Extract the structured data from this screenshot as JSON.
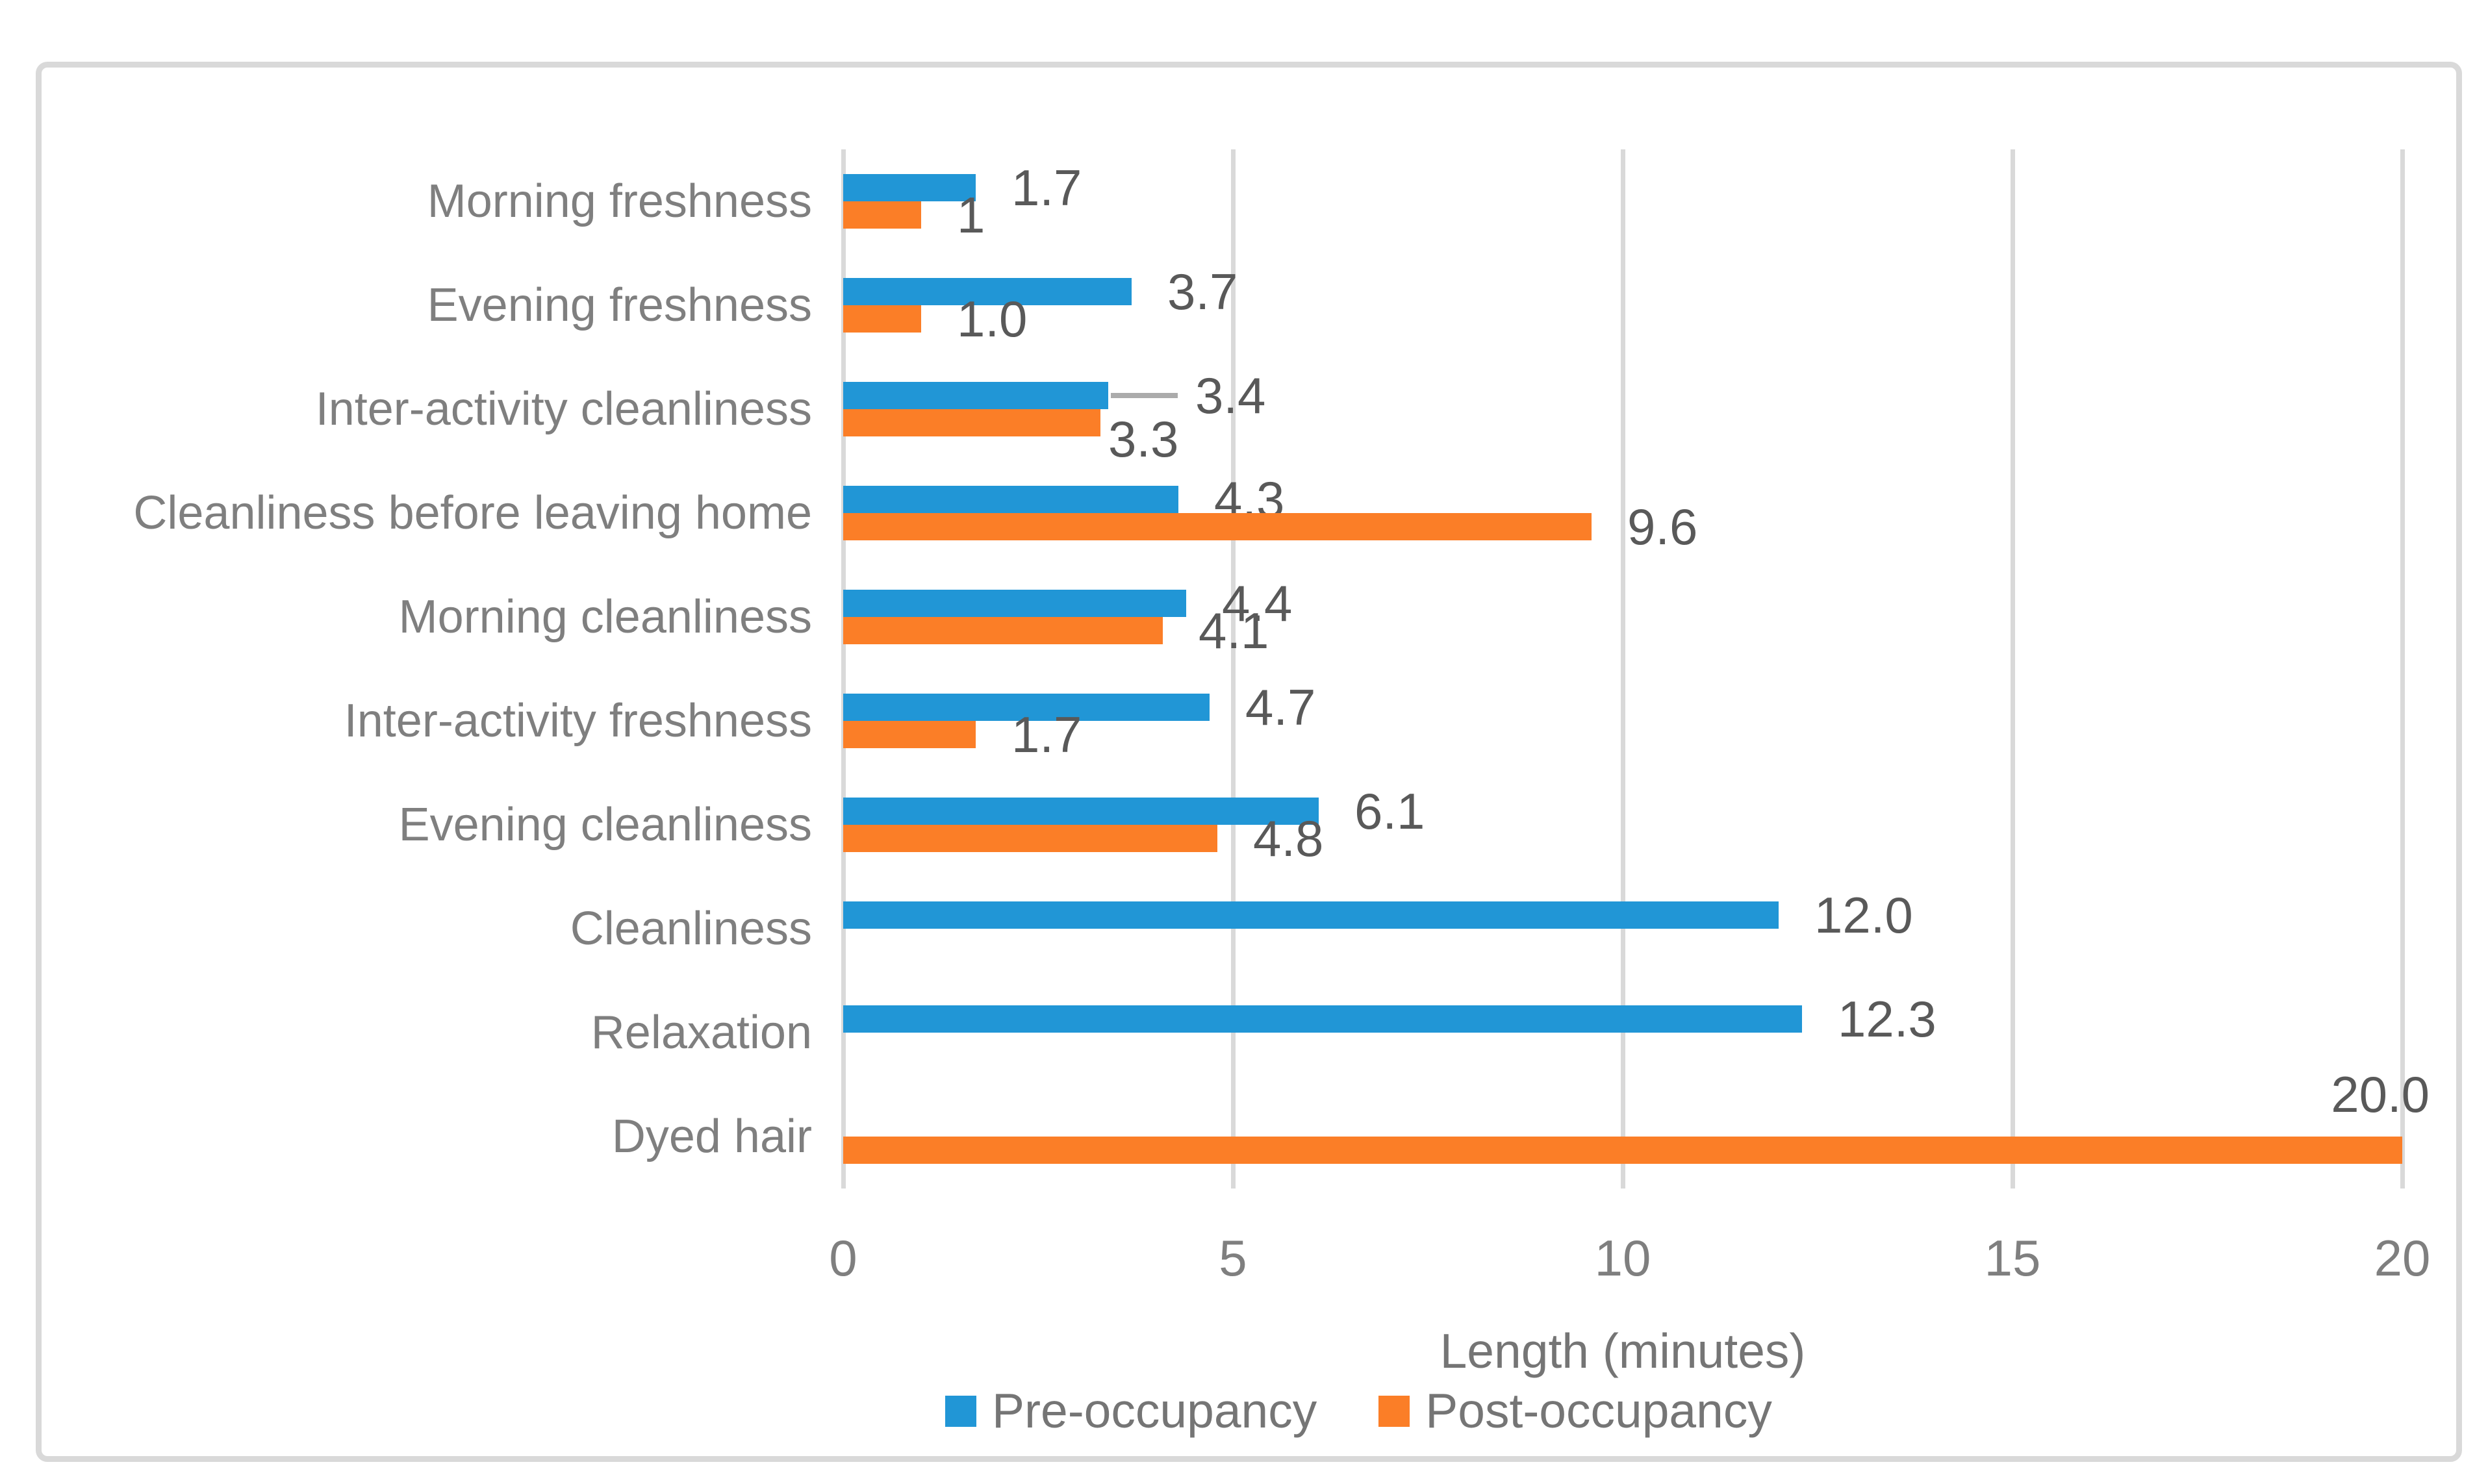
{
  "chart_data": {
    "type": "bar",
    "orientation": "horizontal",
    "title": "",
    "xlabel": "Length (minutes)",
    "ylabel": "",
    "xlim": [
      0,
      20
    ],
    "x_ticks": [
      0,
      5,
      10,
      15,
      20
    ],
    "grid": true,
    "legend_position": "bottom",
    "categories": [
      "Morning freshness",
      "Evening freshness",
      "Inter-activity cleanliness",
      "Cleanliness before leaving home",
      "Morning cleanliness",
      "Inter-activity freshness",
      "Evening cleanliness",
      "Cleanliness",
      "Relaxation",
      "Dyed hair"
    ],
    "series": [
      {
        "name": "Pre-occupancy",
        "color": "#2196D6",
        "values": [
          1.7,
          3.7,
          3.4,
          4.3,
          4.4,
          4.7,
          6.1,
          12.0,
          12.3,
          null
        ],
        "labels": [
          "1.7",
          "3.7",
          "3.4",
          "4.3",
          "4.4",
          "4.7",
          "6.1",
          "12.0",
          "12.3",
          null
        ]
      },
      {
        "name": "Post-occupancy",
        "color": "#FB7E27",
        "values": [
          1,
          1.0,
          3.3,
          9.6,
          4.1,
          1.7,
          4.8,
          null,
          null,
          20.0
        ],
        "labels": [
          "1",
          "1.0",
          "3.3",
          "9.6",
          "4.1",
          "1.7",
          "4.8",
          null,
          null,
          "20.0"
        ]
      }
    ],
    "annotations": {
      "leader_line": {
        "category_index": 2,
        "series_index": 0
      }
    },
    "colors": {
      "gridline": "#D9D9D9",
      "chart_border": "#D9D9D9",
      "leader_line": "#ABABAB",
      "category_text": "#7F7F7F",
      "tick_text": "#7F7F7F",
      "value_text": "#595959",
      "axis_title_text": "#757575",
      "legend_text": "#757575",
      "background": "#FFFFFF"
    }
  }
}
